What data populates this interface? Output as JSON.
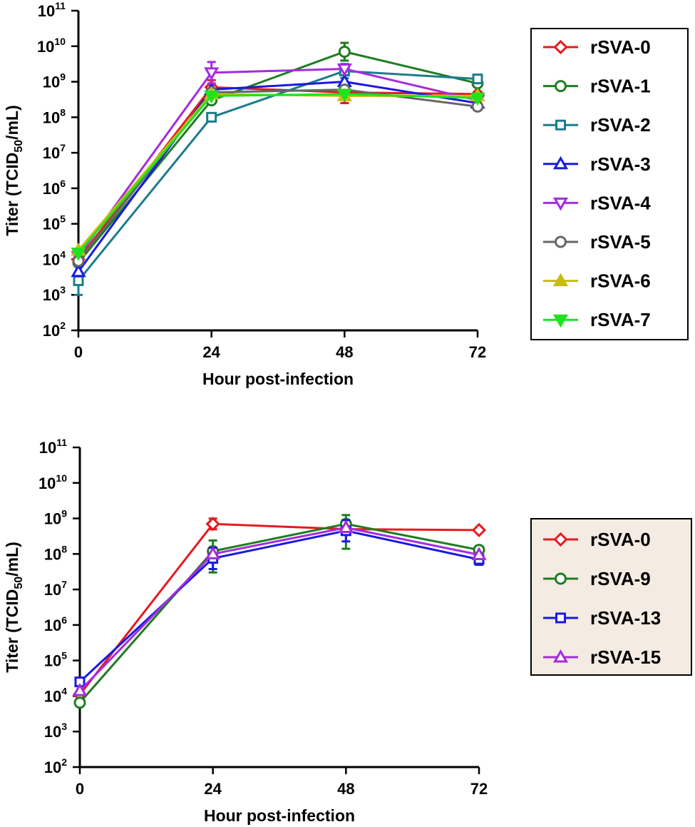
{
  "chart_data": [
    {
      "type": "line",
      "x": [
        0,
        24,
        48,
        72
      ],
      "xticks": [
        "0",
        "24",
        "48",
        "72"
      ],
      "xlabel": "Hour post-infection",
      "ylabel_main": "Titer (TCID",
      "ylabel_sub": "50",
      "ylabel_end": "/mL)",
      "yscale": "log",
      "ylim": [
        100,
        100000000000
      ],
      "yticks": [
        {
          "base": "10",
          "exp": "11",
          "value": 100000000000
        },
        {
          "base": "10",
          "exp": "10",
          "value": 10000000000
        },
        {
          "base": "10",
          "exp": "9",
          "value": 1000000000
        },
        {
          "base": "10",
          "exp": "8",
          "value": 100000000
        },
        {
          "base": "10",
          "exp": "7",
          "value": 10000000
        },
        {
          "base": "10",
          "exp": "6",
          "value": 1000000
        },
        {
          "base": "10",
          "exp": "5",
          "value": 100000
        },
        {
          "base": "10",
          "exp": "4",
          "value": 10000
        },
        {
          "base": "10",
          "exp": "3",
          "value": 1000
        },
        {
          "base": "10",
          "exp": "2",
          "value": 100
        }
      ],
      "legend_background": "#ffffff",
      "series": [
        {
          "name": "rSVA-0",
          "color": "#e8191e",
          "marker": "diamond",
          "values": [
            10000,
            700000000,
            500000000,
            450000000
          ],
          "errors": [
            [
              0,
              0
            ],
            [
              0.2,
              0.2
            ],
            [
              0.3,
              0.2
            ],
            [
              0,
              0
            ]
          ]
        },
        {
          "name": "rSVA-1",
          "color": "#1f7d1f",
          "marker": "circle",
          "values": [
            8000,
            300000000,
            7000000000,
            900000000
          ],
          "errors": [
            [
              0,
              0
            ],
            [
              0,
              0
            ],
            [
              0.25,
              0.25
            ],
            [
              0,
              0
            ]
          ]
        },
        {
          "name": "rSVA-2",
          "color": "#1c7c8c",
          "marker": "square",
          "values": [
            2500,
            100000000,
            2000000000,
            1200000000
          ],
          "errors": [
            [
              0.4,
              0.4
            ],
            [
              0,
              0
            ],
            [
              0.2,
              0.2
            ],
            [
              0.1,
              0.1
            ]
          ]
        },
        {
          "name": "rSVA-3",
          "color": "#1a1ae0",
          "marker": "triangle-up",
          "values": [
            4500,
            600000000,
            1000000000,
            250000000
          ],
          "errors": [
            [
              0,
              0
            ],
            [
              0,
              0
            ],
            [
              0,
              0
            ],
            [
              0,
              0
            ]
          ]
        },
        {
          "name": "rSVA-4",
          "color": "#a42ce0",
          "marker": "triangle-down",
          "values": [
            12000,
            1800000000,
            2300000000,
            300000000
          ],
          "errors": [
            [
              0,
              0
            ],
            [
              0.3,
              0.3
            ],
            [
              0,
              0
            ],
            [
              0,
              0
            ]
          ]
        },
        {
          "name": "rSVA-5",
          "color": "#666666",
          "marker": "circle",
          "values": [
            9000,
            500000000,
            600000000,
            200000000
          ],
          "errors": [
            [
              0,
              0
            ],
            [
              0,
              0
            ],
            [
              0,
              0
            ],
            [
              0.1,
              0.1
            ]
          ]
        },
        {
          "name": "rSVA-6",
          "color": "#c7bd12",
          "marker": "triangle-up-filled",
          "values": [
            18000,
            450000000,
            400000000,
            400000000
          ],
          "errors": [
            [
              0,
              0
            ],
            [
              0,
              0
            ],
            [
              0,
              0
            ],
            [
              0,
              0
            ]
          ]
        },
        {
          "name": "rSVA-7",
          "color": "#1ee31e",
          "marker": "triangle-down-filled",
          "values": [
            15000,
            400000000,
            450000000,
            350000000
          ],
          "errors": [
            [
              0,
              0
            ],
            [
              0,
              0
            ],
            [
              0,
              0
            ],
            [
              0,
              0
            ]
          ]
        }
      ]
    },
    {
      "type": "line",
      "x": [
        0,
        24,
        48,
        72
      ],
      "xticks": [
        "0",
        "24",
        "48",
        "72"
      ],
      "xlabel": "Hour post-infection",
      "ylabel_main": "Titer (TCID",
      "ylabel_sub": "50",
      "ylabel_end": "/mL)",
      "yscale": "log",
      "ylim": [
        100,
        100000000000
      ],
      "yticks": [
        {
          "base": "10",
          "exp": "11",
          "value": 100000000000
        },
        {
          "base": "10",
          "exp": "10",
          "value": 10000000000
        },
        {
          "base": "10",
          "exp": "9",
          "value": 1000000000
        },
        {
          "base": "10",
          "exp": "8",
          "value": 100000000
        },
        {
          "base": "10",
          "exp": "7",
          "value": 10000000
        },
        {
          "base": "10",
          "exp": "6",
          "value": 1000000
        },
        {
          "base": "10",
          "exp": "5",
          "value": 100000
        },
        {
          "base": "10",
          "exp": "4",
          "value": 10000
        },
        {
          "base": "10",
          "exp": "3",
          "value": 1000
        },
        {
          "base": "10",
          "exp": "2",
          "value": 100
        }
      ],
      "legend_background": "#f4ebe2",
      "series": [
        {
          "name": "rSVA-0",
          "color": "#e8191e",
          "marker": "diamond",
          "values": [
            11000,
            700000000,
            500000000,
            470000000
          ],
          "errors": [
            [
              0,
              0
            ],
            [
              0.15,
              0.15
            ],
            [
              0,
              0
            ],
            [
              0,
              0
            ]
          ]
        },
        {
          "name": "rSVA-9",
          "color": "#1f7d1f",
          "marker": "circle",
          "values": [
            6500,
            120000000,
            700000000,
            130000000
          ],
          "errors": [
            [
              0,
              0
            ],
            [
              0.6,
              0.3
            ],
            [
              0.7,
              0.25
            ],
            [
              0,
              0
            ]
          ]
        },
        {
          "name": "rSVA-13",
          "color": "#1a1ae0",
          "marker": "square",
          "values": [
            25000,
            75000000,
            450000000,
            70000000
          ],
          "errors": [
            [
              0,
              0
            ],
            [
              0.3,
              0.3
            ],
            [
              0.3,
              0.3
            ],
            [
              0.15,
              0.15
            ]
          ]
        },
        {
          "name": "rSVA-15",
          "color": "#a42ce0",
          "marker": "triangle-up",
          "values": [
            14000,
            100000000,
            550000000,
            95000000
          ],
          "errors": [
            [
              0,
              0
            ],
            [
              0,
              0
            ],
            [
              0,
              0
            ],
            [
              0,
              0
            ]
          ]
        }
      ]
    }
  ]
}
